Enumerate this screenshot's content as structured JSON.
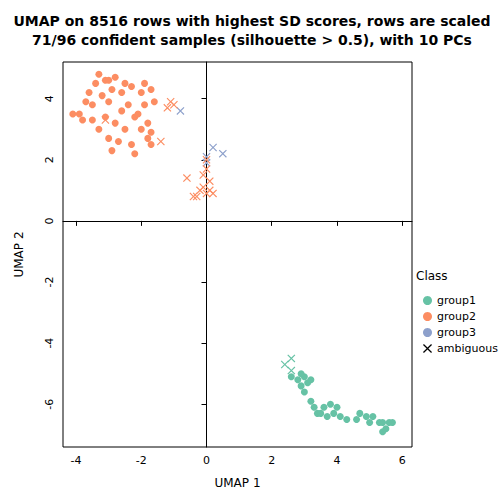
{
  "chart_data": {
    "type": "scatter",
    "title": "UMAP on 8516 rows with highest SD scores, rows are scaled\n71/96 confident samples (silhouette > 0.5), with 10 PCs",
    "x_label": "UMAP 1",
    "y_label": "UMAP 2",
    "legend_title": "Class",
    "legend": "right",
    "grid": false,
    "xlim": [
      -4.4,
      6.3
    ],
    "xticks": [
      -4,
      -2,
      0,
      2,
      4,
      6
    ],
    "ylim": [
      -7.4,
      5.2
    ],
    "yticks": [
      -6,
      -4,
      -2,
      0,
      2,
      4
    ],
    "series": [
      {
        "name": "group1",
        "color": "#66C2A5",
        "marker": "circle",
        "x": [
          2.6,
          2.8,
          2.9,
          3.0,
          3.1,
          3.2,
          2.9,
          3.0,
          3.2,
          3.3,
          3.4,
          3.6,
          3.7,
          3.8,
          3.9,
          4.0,
          4.1,
          4.3,
          4.6,
          4.7,
          4.9,
          5.0,
          5.1,
          5.3,
          5.4,
          5.5,
          5.6,
          5.7,
          5.4,
          3.5
        ],
        "values": [
          -5.1,
          -5.2,
          -5.4,
          -5.1,
          -5.3,
          -5.2,
          -5.0,
          -5.6,
          -5.9,
          -6.1,
          -6.3,
          -6.1,
          -6.4,
          -6.0,
          -6.3,
          -6.1,
          -6.4,
          -6.5,
          -6.5,
          -6.3,
          -6.4,
          -6.6,
          -6.4,
          -6.6,
          -6.9,
          -6.8,
          -6.6,
          -6.6,
          -6.6,
          -6.3
        ]
      },
      {
        "name": "group2",
        "color": "#FC8D62",
        "marker": "circle",
        "x": [
          -4.1,
          -3.9,
          -3.7,
          -3.6,
          -3.4,
          -3.3,
          -3.1,
          -3.2,
          -3.5,
          -3.5,
          -3.3,
          -3.1,
          -3.0,
          -2.9,
          -2.8,
          -2.6,
          -2.6,
          -2.8,
          -3.0,
          -2.7,
          -2.5,
          -2.4,
          -2.3,
          -2.2,
          -2.0,
          -1.9,
          -2.0,
          -2.3,
          -2.9,
          -2.2,
          -1.8,
          -1.7,
          -1.6,
          -1.7,
          -1.7,
          -1.9,
          -2.5,
          -3.0,
          -3.8,
          -2.1,
          -1.8
        ],
        "values": [
          3.5,
          3.5,
          3.9,
          4.2,
          4.5,
          4.8,
          4.6,
          4.1,
          3.8,
          3.3,
          3.0,
          3.4,
          3.9,
          4.3,
          4.7,
          4.2,
          3.6,
          3.2,
          2.7,
          2.6,
          3.0,
          3.8,
          4.4,
          3.4,
          4.2,
          3.8,
          3.0,
          2.5,
          2.3,
          2.2,
          3.2,
          4.3,
          3.9,
          2.9,
          2.5,
          4.5,
          4.5,
          4.6,
          3.3,
          3.5,
          2.7
        ]
      },
      {
        "name": "group3",
        "color": "#8DA0CB",
        "marker": "circle",
        "x": [],
        "values": []
      },
      {
        "name": "ambiguous",
        "color": "#000000",
        "marker": "x",
        "x": [
          2.4,
          2.6,
          2.6,
          -0.8,
          0.2,
          0.5,
          0.0,
          0.0,
          -1.2,
          -1.1,
          -1.0,
          -1.4,
          -0.6,
          0.0,
          0.1,
          -0.1,
          0.0,
          0.2,
          -0.3,
          -0.4,
          -0.2,
          0.1,
          -0.1,
          -3.1,
          0.0
        ],
        "values": [
          -4.7,
          -4.5,
          -4.9,
          3.6,
          2.4,
          2.2,
          2.1,
          1.9,
          3.7,
          3.9,
          3.8,
          2.6,
          1.4,
          1.7,
          1.3,
          1.1,
          0.9,
          0.9,
          0.8,
          0.8,
          1.0,
          1.0,
          1.5,
          3.3,
          2.0
        ],
        "colors": [
          "#66C2A5",
          "#66C2A5",
          "#66C2A5",
          "#8DA0CB",
          "#8DA0CB",
          "#8DA0CB",
          "#8DA0CB",
          "#8DA0CB",
          "#FC8D62",
          "#FC8D62",
          "#FC8D62",
          "#FC8D62",
          "#FC8D62",
          "#FC8D62",
          "#FC8D62",
          "#FC8D62",
          "#FC8D62",
          "#FC8D62",
          "#FC8D62",
          "#FC8D62",
          "#FC8D62",
          "#FC8D62",
          "#FC8D62",
          "#FC8D62",
          "#FC8D62"
        ]
      }
    ]
  }
}
